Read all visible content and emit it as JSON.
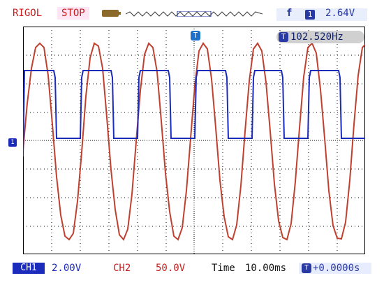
{
  "header": {
    "brand": "RIGOL",
    "run_status": "STOP",
    "trigger": {
      "edge_symbol": "f",
      "source": "1",
      "level": "2.64V"
    }
  },
  "display": {
    "frequency_icon": "T",
    "frequency": "102.520Hz",
    "trigger_marker": "T",
    "ch1_marker": "1"
  },
  "footer": {
    "ch1_label": "CH1",
    "ch1_scale": "2.00V",
    "ch2_label": "CH2",
    "ch2_scale": "50.0V",
    "time_label": "Time",
    "time_scale": "10.00ms",
    "offset_icon": "T",
    "offset": "+0.0000s"
  },
  "colors": {
    "ch1": "#1b2bbb",
    "ch2": "#c81e1e",
    "grid_frame": "#000000",
    "background": "#ffffff"
  },
  "icons": [
    "battery-icon",
    "memory-depth-strip",
    "trigger-edge-icon",
    "trigger-source-icon",
    "frequency-counter-icon",
    "trigger-position-marker-icon",
    "ch1-ground-marker-icon",
    "time-offset-icon"
  ]
}
